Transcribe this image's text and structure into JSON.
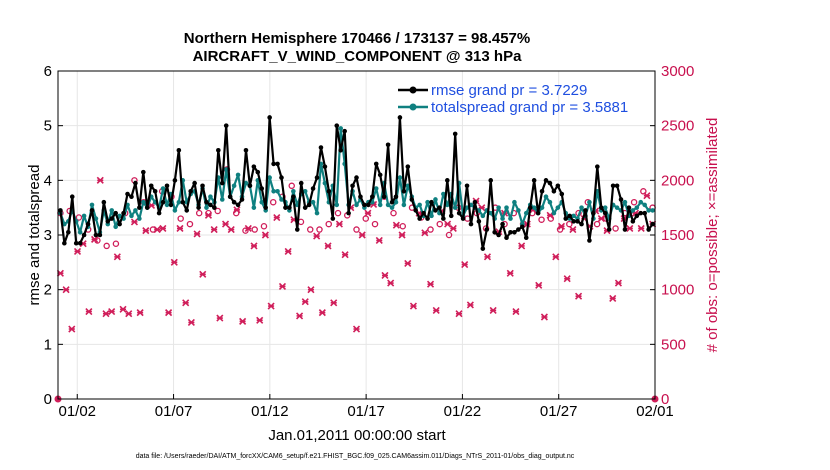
{
  "chart_data": {
    "type": "line",
    "title_line1": "Northern Hemisphere 170466 / 173137 = 98.457%",
    "title_line2": "AIRCRAFT_V_WIND_COMPONENT @ 313 hPa",
    "ylabel_left": "rmse and totalspread",
    "ylabel_right": "# of obs: o=possible; ×=assimilated",
    "xlabel": "Jan.01,2011 00:00:00 start",
    "footnote": "data file: /Users/raeder/DAI/ATM_forcXX/CAM6_setup/f.e21.FHIST_BGC.f09_025.CAM6assim.011/Diags_NTrS_2011-01/obs_diag_output.nc",
    "xlim": [
      1,
      32
    ],
    "ylim_left": [
      0,
      6
    ],
    "ylim_right": [
      0,
      3000
    ],
    "x_tick_positions": [
      2,
      7,
      12,
      17,
      22,
      27,
      32
    ],
    "x_tick_labels": [
      "01/02",
      "01/07",
      "01/12",
      "01/17",
      "01/22",
      "01/27",
      "02/01"
    ],
    "y_left_ticks": [
      "0",
      "1",
      "2",
      "3",
      "4",
      "5",
      "6"
    ],
    "y_right_ticks": [
      "0",
      "500",
      "1000",
      "1500",
      "2000",
      "2500",
      "3000"
    ],
    "colors": {
      "rmse": "#000000",
      "spread": "#0f8080",
      "obs": "#d01e5a",
      "legend_text": "#1f4fe0",
      "grid": "#e6e6e6"
    },
    "series": [
      {
        "name": "rmse grand pr = 3.7229",
        "axis": "left",
        "values": [
          3.45,
          2.85,
          3.05,
          3.7,
          2.85,
          2.85,
          3.0,
          3.2,
          3.45,
          3.0,
          3.0,
          3.6,
          3.25,
          3.3,
          3.4,
          3.2,
          3.4,
          3.75,
          3.7,
          3.95,
          3.5,
          4.15,
          3.5,
          3.9,
          3.8,
          3.4,
          3.6,
          3.9,
          3.55,
          4.0,
          4.55,
          3.6,
          3.45,
          3.8,
          3.95,
          3.5,
          3.9,
          3.6,
          3.55,
          3.5,
          4.55,
          3.95,
          5.0,
          3.7,
          3.6,
          3.55,
          3.65,
          4.55,
          3.9,
          4.25,
          4.15,
          3.85,
          3.5,
          5.15,
          4.3,
          4.3,
          4.05,
          3.5,
          3.5,
          3.7,
          3.1,
          3.95,
          3.5,
          3.55,
          3.85,
          4.05,
          4.6,
          4.25,
          3.8,
          3.3,
          5.0,
          4.55,
          4.9,
          3.4,
          3.9,
          4.05,
          3.7,
          3.55,
          3.55,
          3.7,
          4.3,
          4.1,
          3.7,
          4.65,
          3.6,
          3.7,
          5.15,
          3.8,
          4.25,
          3.65,
          3.45,
          3.3,
          3.4,
          3.3,
          3.6,
          3.45,
          3.5,
          3.3,
          4.0,
          3.35,
          4.85,
          3.4,
          3.3,
          3.9,
          3.2,
          3.6,
          3.25,
          2.75,
          3.1,
          4.0,
          3.05,
          3.0,
          3.2,
          2.95,
          3.05,
          3.05,
          3.1,
          3.15,
          2.95,
          3.5,
          4.0,
          3.4,
          3.8,
          4.0,
          3.95,
          3.8,
          3.9,
          3.75,
          3.3,
          3.35,
          3.25,
          3.25,
          3.2,
          3.45,
          2.9,
          3.4,
          4.25,
          3.5,
          3.4,
          3.1,
          3.9,
          3.9,
          3.65,
          3.1,
          3.5,
          3.25,
          3.35,
          3.4,
          3.4,
          3.1,
          3.2
        ]
      },
      {
        "name": "totalspread grand pr = 3.5881",
        "axis": "left",
        "values": [
          3.4,
          3.2,
          3.25,
          3.45,
          3.25,
          3.05,
          3.35,
          3.15,
          3.55,
          3.3,
          3.05,
          3.45,
          3.2,
          3.45,
          3.15,
          3.35,
          3.3,
          3.55,
          3.35,
          3.45,
          3.3,
          3.6,
          3.5,
          3.7,
          3.6,
          3.5,
          3.85,
          3.55,
          3.75,
          3.45,
          3.6,
          4.0,
          3.6,
          3.75,
          3.8,
          3.55,
          3.85,
          3.5,
          3.7,
          3.6,
          4.05,
          3.65,
          4.2,
          3.7,
          3.9,
          4.1,
          3.7,
          3.95,
          3.9,
          3.5,
          4.0,
          3.6,
          3.45,
          4.05,
          3.8,
          3.8,
          3.65,
          3.6,
          3.45,
          3.8,
          3.55,
          3.75,
          3.8,
          3.6,
          3.6,
          3.4,
          4.3,
          3.95,
          3.6,
          3.9,
          3.55,
          4.95,
          4.3,
          3.55,
          3.8,
          3.55,
          3.65,
          3.5,
          3.6,
          3.6,
          3.85,
          3.55,
          3.95,
          3.55,
          3.5,
          3.6,
          4.05,
          3.55,
          3.9,
          3.7,
          3.5,
          3.55,
          3.35,
          3.6,
          3.35,
          3.65,
          3.4,
          3.75,
          3.55,
          3.75,
          3.5,
          3.95,
          3.35,
          3.5,
          3.55,
          3.5,
          3.45,
          3.35,
          3.45,
          3.4,
          3.3,
          3.5,
          3.3,
          3.5,
          3.3,
          3.6,
          3.45,
          3.2,
          3.4,
          3.55,
          3.5,
          3.4,
          3.5,
          3.7,
          3.6,
          3.4,
          3.5,
          3.6,
          3.4,
          3.3,
          3.35,
          3.3,
          3.5,
          3.35,
          3.6,
          3.3,
          3.8,
          3.45,
          3.5,
          3.3,
          3.55,
          3.5,
          3.45,
          3.6,
          3.35,
          3.45,
          3.5,
          3.6,
          3.55,
          3.45,
          3.45
        ]
      },
      {
        "name": "obs possible",
        "axis": "right",
        "marker": "o",
        "values": [
          1700,
          1720,
          1660,
          1550,
          1450,
          1400,
          1420,
          1700,
          2000,
          1800,
          1550,
          1900,
          1850,
          1650,
          1600,
          1700,
          1700,
          1720,
          2100,
          1700,
          1540,
          1550,
          1580,
          1800,
          1850,
          1950,
          1620,
          1550,
          1550,
          1600,
          1700,
          1680,
          1550,
          1650,
          1600,
          1850,
          1700,
          1580,
          1750,
          1660,
          1550,
          1600,
          1500,
          1750,
          1650,
          1700,
          1560,
          1750,
          1600,
          1700,
          1600,
          1700,
          1640,
          1650,
          1550,
          1600,
          1700,
          1800,
          1600,
          1650,
          1560,
          1700,
          1800,
          1900,
          1750
        ]
      },
      {
        "name": "obs assimilated",
        "axis": "right",
        "marker": "x",
        "values": [
          1150,
          1000,
          640,
          1350,
          1420,
          800,
          1460,
          2000,
          780,
          800,
          1300,
          820,
          780,
          1620,
          790,
          1540,
          1770,
          1550,
          1560,
          790,
          1250,
          1560,
          880,
          700,
          1510,
          1140,
          1680,
          1550,
          740,
          1600,
          1550,
          1730,
          710,
          1560,
          1400,
          720,
          1500,
          850,
          1660,
          1030,
          1350,
          1640,
          760,
          890,
          1000,
          1490,
          790,
          1400,
          880,
          1600,
          1320,
          1750,
          640,
          1500,
          1700,
          1780,
          1450,
          1130,
          1060,
          1590,
          1500,
          1240,
          850,
          1700,
          1520,
          1050,
          810,
          1720,
          1600,
          1560,
          780,
          1230,
          860,
          1810,
          1750,
          1300,
          810,
          1530,
          1700,
          1150,
          800,
          1400,
          1600,
          1730,
          1040,
          750,
          1680,
          1300,
          1580,
          1100,
          1550,
          940,
          1650,
          1580,
          1720,
          1650,
          1540,
          920,
          1060,
          1650,
          1560,
          1700,
          1560,
          1860,
          1600
        ]
      }
    ],
    "legend_position": "top-right"
  }
}
